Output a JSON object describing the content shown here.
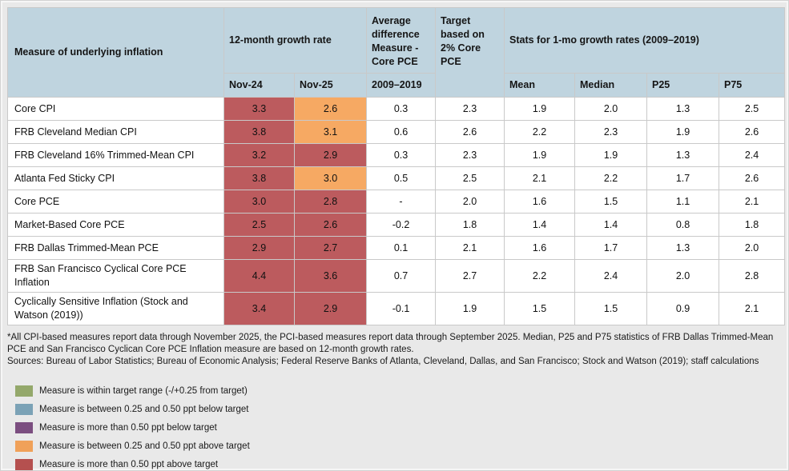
{
  "palette": {
    "page_bg": "#e9e9e9",
    "header_bg": "#bfd4df",
    "red": "#bc5b5e",
    "orange": "#f6a963"
  },
  "table": {
    "header": {
      "measure": "Measure of underlying inflation",
      "growth_group": "12-month growth rate",
      "avg_diff": "Average difference Measure - Core PCE",
      "target": "Target based on 2% Core PCE",
      "stats_group": "Stats for 1-mo growth rates (2009–2019)",
      "sub_nov24": "Nov-24",
      "sub_nov25": "Nov-25",
      "sub_avg_period": "2009–2019",
      "sub_mean": "Mean",
      "sub_median": "Median",
      "sub_p25": "P25",
      "sub_p75": "P75"
    },
    "rows": [
      {
        "measure": "Core CPI",
        "nov24": "3.3",
        "nov24_color": "red",
        "nov25": "2.6",
        "nov25_color": "orange",
        "avg_diff": "0.3",
        "target": "2.3",
        "mean": "1.9",
        "median": "2.0",
        "p25": "1.3",
        "p75": "2.5"
      },
      {
        "measure": "FRB Cleveland Median CPI",
        "nov24": "3.8",
        "nov24_color": "red",
        "nov25": "3.1",
        "nov25_color": "orange",
        "avg_diff": "0.6",
        "target": "2.6",
        "mean": "2.2",
        "median": "2.3",
        "p25": "1.9",
        "p75": "2.6"
      },
      {
        "measure": "FRB Cleveland 16% Trimmed-Mean CPI",
        "nov24": "3.2",
        "nov24_color": "red",
        "nov25": "2.9",
        "nov25_color": "red",
        "avg_diff": "0.3",
        "target": "2.3",
        "mean": "1.9",
        "median": "1.9",
        "p25": "1.3",
        "p75": "2.4"
      },
      {
        "measure": "Atlanta Fed Sticky CPI",
        "nov24": "3.8",
        "nov24_color": "red",
        "nov25": "3.0",
        "nov25_color": "orange",
        "avg_diff": "0.5",
        "target": "2.5",
        "mean": "2.1",
        "median": "2.2",
        "p25": "1.7",
        "p75": "2.6"
      },
      {
        "measure": "Core PCE",
        "nov24": "3.0",
        "nov24_color": "red",
        "nov25": "2.8",
        "nov25_color": "red",
        "avg_diff": "-",
        "target": "2.0",
        "mean": "1.6",
        "median": "1.5",
        "p25": "1.1",
        "p75": "2.1"
      },
      {
        "measure": "Market-Based Core PCE",
        "nov24": "2.5",
        "nov24_color": "red",
        "nov25": "2.6",
        "nov25_color": "red",
        "avg_diff": "-0.2",
        "target": "1.8",
        "mean": "1.4",
        "median": "1.4",
        "p25": "0.8",
        "p75": "1.8"
      },
      {
        "measure": "FRB Dallas Trimmed-Mean PCE",
        "nov24": "2.9",
        "nov24_color": "red",
        "nov25": "2.7",
        "nov25_color": "red",
        "avg_diff": "0.1",
        "target": "2.1",
        "mean": "1.6",
        "median": "1.7",
        "p25": "1.3",
        "p75": "2.0"
      },
      {
        "measure": "FRB San Francisco Cyclical Core PCE Inflation",
        "nov24": "4.4",
        "nov24_color": "red",
        "nov25": "3.6",
        "nov25_color": "red",
        "avg_diff": "0.7",
        "target": "2.7",
        "mean": "2.2",
        "median": "2.4",
        "p25": "2.0",
        "p75": "2.8"
      },
      {
        "measure": "Cyclically Sensitive Inflation (Stock and Watson (2019))",
        "nov24": "3.4",
        "nov24_color": "red",
        "nov25": "2.9",
        "nov25_color": "red",
        "avg_diff": "-0.1",
        "target": "1.9",
        "mean": "1.5",
        "median": "1.5",
        "p25": "0.9",
        "p75": "2.1"
      }
    ]
  },
  "footnotes": [
    "*All CPI-based measures report data through November 2025, the PCI-based measures report data through September 2025. Median, P25 and P75 statistics of FRB Dallas Trimmed-Mean PCE and San Francisco Cyclican Core PCE Inflation measure are based on 12-month growth rates.",
    "Sources: Bureau of Labor Statistics; Bureau of Economic Analysis; Federal Reserve Banks of Atlanta, Cleveland, Dallas, and San Francisco; Stock and Watson (2019); staff calculations"
  ],
  "legend": [
    {
      "color": "#94a86b",
      "label": "Measure is within target range (-/+0.25 from target)"
    },
    {
      "color": "#7ba2b6",
      "label": "Measure is between 0.25 and 0.50 ppt below target"
    },
    {
      "color": "#7b4e80",
      "label": "Measure is more than 0.50 ppt below target"
    },
    {
      "color": "#f0a159",
      "label": "Measure is between 0.25 and 0.50 ppt above target"
    },
    {
      "color": "#b5504f",
      "label": "Measure is more than 0.50 ppt above target"
    }
  ],
  "chart_data": {
    "type": "table",
    "title": "Measures of underlying inflation vs. target",
    "columns": [
      "Measure of underlying inflation",
      "12-month growth rate Nov-24",
      "12-month growth rate Nov-25",
      "Average difference Measure - Core PCE 2009–2019",
      "Target based on 2% Core PCE",
      "Mean (1-mo growth 2009–2019)",
      "Median (1-mo growth 2009–2019)",
      "P25 (1-mo growth 2009–2019)",
      "P75 (1-mo growth 2009–2019)"
    ],
    "rows": [
      [
        "Core CPI",
        3.3,
        2.6,
        0.3,
        2.3,
        1.9,
        2.0,
        1.3,
        2.5
      ],
      [
        "FRB Cleveland Median CPI",
        3.8,
        3.1,
        0.6,
        2.6,
        2.2,
        2.3,
        1.9,
        2.6
      ],
      [
        "FRB Cleveland 16% Trimmed-Mean CPI",
        3.2,
        2.9,
        0.3,
        2.3,
        1.9,
        1.9,
        1.3,
        2.4
      ],
      [
        "Atlanta Fed Sticky CPI",
        3.8,
        3.0,
        0.5,
        2.5,
        2.1,
        2.2,
        1.7,
        2.6
      ],
      [
        "Core PCE",
        3.0,
        2.8,
        null,
        2.0,
        1.6,
        1.5,
        1.1,
        2.1
      ],
      [
        "Market-Based Core PCE",
        2.5,
        2.6,
        -0.2,
        1.8,
        1.4,
        1.4,
        0.8,
        1.8
      ],
      [
        "FRB Dallas Trimmed-Mean PCE",
        2.9,
        2.7,
        0.1,
        2.1,
        1.6,
        1.7,
        1.3,
        2.0
      ],
      [
        "FRB San Francisco Cyclical Core PCE Inflation",
        4.4,
        3.6,
        0.7,
        2.7,
        2.2,
        2.4,
        2.0,
        2.8
      ],
      [
        "Cyclically Sensitive Inflation (Stock and Watson (2019))",
        3.4,
        2.9,
        -0.1,
        1.9,
        1.5,
        1.5,
        0.9,
        2.1
      ]
    ],
    "cell_highlight_colors": {
      "Nov-24": [
        "red",
        "red",
        "red",
        "red",
        "red",
        "red",
        "red",
        "red",
        "red"
      ],
      "Nov-25": [
        "orange",
        "orange",
        "red",
        "orange",
        "red",
        "red",
        "red",
        "red",
        "red"
      ]
    },
    "legend_position": "bottom-left"
  }
}
